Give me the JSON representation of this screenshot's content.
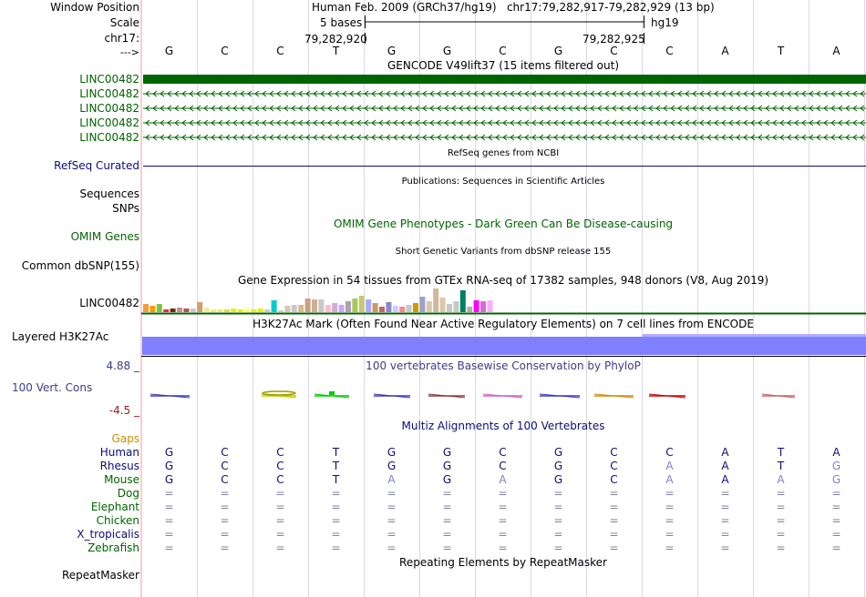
{
  "colors": {
    "gencode": "#006400",
    "refseq": "#0c0c78",
    "phylop": "#3c3c8c",
    "gaps": "#d28c00",
    "species": "#0c0c78",
    "species_other": "#006400",
    "h3k27ac": "#8080ff",
    "omim": "#006400",
    "neg_value": "#9b1c1c"
  },
  "header": {
    "window_position_label": "Window Position",
    "scale_label": "Scale",
    "chrom_label": "chr17:",
    "strand_label": "--->",
    "assembly_text": "Human Feb. 2009 (GRCh37/hg19)   chr17:79,282,917-79,282,929 (13 bp)",
    "scale_bases": "5 bases",
    "scale_db": "hg19",
    "pos_left": "79,282,920",
    "pos_right": "79,282,925"
  },
  "sequence": [
    "G",
    "C",
    "C",
    "T",
    "G",
    "G",
    "C",
    "G",
    "C",
    "C",
    "A",
    "T",
    "A"
  ],
  "tracks": {
    "gencode": {
      "title": "GENCODE V49lift37 (15 items filtered out)",
      "labels": [
        "LINC00482",
        "LINC00482",
        "LINC00482",
        "LINC00482",
        "LINC00482"
      ]
    },
    "refseq": {
      "title": "RefSeq genes from NCBI",
      "label": "RefSeq Curated"
    },
    "publications": {
      "title": "Publications: Sequences in Scientific Articles",
      "label_sequences": "Sequences",
      "label_snps": "SNPs"
    },
    "omim": {
      "title": "OMIM Gene Phenotypes - Dark Green Can Be Disease-causing",
      "label": "OMIM Genes"
    },
    "dbsnp": {
      "title": "Short Genetic Variants from dbSNP release 155",
      "label": "Common dbSNP(155)"
    },
    "gtex": {
      "title": "Gene Expression in 54 tissues from GTEx RNA-seq of 17382 samples, 948 donors (V8, Aug 2019)",
      "label": "LINC00482"
    },
    "h3k27ac": {
      "title": "H3K27Ac Mark (Often Found Near Active Regulatory Elements) on 7 cell lines from ENCODE",
      "label": "Layered H3K27Ac"
    },
    "phylop": {
      "title": "100 vertebrates Basewise Conservation by PhyloP",
      "label": "100 Vert. Cons",
      "max": "4.88 _",
      "min": "-4.5 _"
    },
    "multiz": {
      "title": "Multiz Alignments of 100 Vertebrates",
      "gaps_label": "Gaps",
      "species": [
        {
          "name": "Human",
          "bases": [
            "G",
            "C",
            "C",
            "T",
            "G",
            "G",
            "C",
            "G",
            "C",
            "C",
            "A",
            "T",
            "A"
          ]
        },
        {
          "name": "Rhesus",
          "bases": [
            "G",
            "C",
            "C",
            "T",
            "G",
            "G",
            "C",
            "G",
            "C",
            "A",
            "A",
            "T",
            "G"
          ]
        },
        {
          "name": "Mouse",
          "bases": [
            "G",
            "C",
            "C",
            "T",
            "A",
            "G",
            "A",
            "G",
            "C",
            "A",
            "A",
            "A",
            "G"
          ]
        },
        {
          "name": "Dog",
          "bases": [
            "=",
            "=",
            "=",
            "=",
            "=",
            "=",
            "=",
            "=",
            "=",
            "=",
            "=",
            "=",
            "="
          ]
        },
        {
          "name": "Elephant",
          "bases": [
            "=",
            "=",
            "=",
            "=",
            "=",
            "=",
            "=",
            "=",
            "=",
            "=",
            "=",
            "=",
            "="
          ]
        },
        {
          "name": "Chicken",
          "bases": [
            "=",
            "=",
            "=",
            "=",
            "=",
            "=",
            "=",
            "=",
            "=",
            "=",
            "=",
            "=",
            "="
          ]
        },
        {
          "name": "X_tropicalis",
          "bases": [
            "=",
            "=",
            "=",
            "=",
            "=",
            "=",
            "=",
            "=",
            "=",
            "=",
            "=",
            "=",
            "="
          ]
        },
        {
          "name": "Zebrafish",
          "bases": [
            "=",
            "=",
            "=",
            "=",
            "=",
            "=",
            "=",
            "=",
            "=",
            "=",
            "=",
            "=",
            "="
          ]
        }
      ]
    },
    "repeatmasker": {
      "title": "Repeating Elements by RepeatMasker",
      "label": "RepeatMasker"
    }
  }
}
